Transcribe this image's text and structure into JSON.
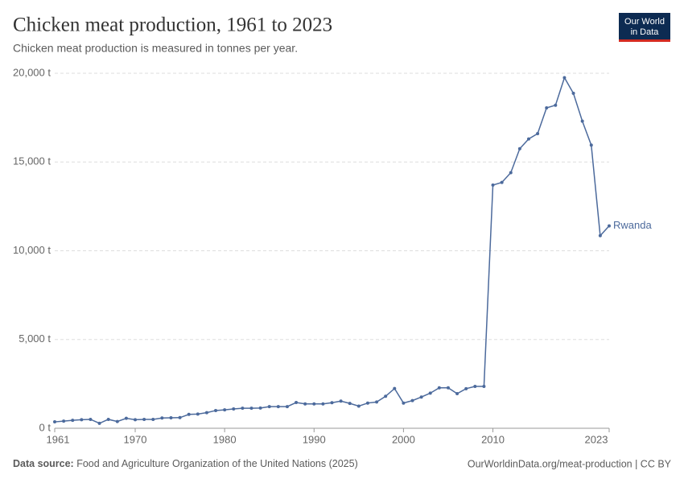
{
  "logo": [
    "Our World",
    "in Data"
  ],
  "source_label": "Data source:",
  "source": "Food and Agriculture Organization of the United Nations (2025)",
  "footer_right": "OurWorldinData.org/meat-production | CC BY",
  "chart_data": {
    "type": "line",
    "title": "Chicken meat production, 1961 to 2023",
    "subtitle": "Chicken meat production is measured in tonnes per year.",
    "x": [
      1961,
      1962,
      1963,
      1964,
      1965,
      1966,
      1967,
      1968,
      1969,
      1970,
      1971,
      1972,
      1973,
      1974,
      1975,
      1976,
      1977,
      1978,
      1979,
      1980,
      1981,
      1982,
      1983,
      1984,
      1985,
      1986,
      1987,
      1988,
      1989,
      1990,
      1991,
      1992,
      1993,
      1994,
      1995,
      1996,
      1997,
      1998,
      1999,
      2000,
      2001,
      2002,
      2003,
      2004,
      2005,
      2006,
      2007,
      2008,
      2009,
      2010,
      2011,
      2012,
      2013,
      2014,
      2015,
      2016,
      2017,
      2018,
      2019,
      2020,
      2021,
      2022,
      2023
    ],
    "series": [
      {
        "name": "Rwanda",
        "color": "#4c6a9c",
        "values": [
          360,
          400,
          450,
          480,
          500,
          280,
          500,
          380,
          560,
          480,
          500,
          500,
          580,
          590,
          600,
          780,
          800,
          880,
          1000,
          1040,
          1090,
          1130,
          1130,
          1140,
          1220,
          1220,
          1220,
          1450,
          1370,
          1370,
          1370,
          1440,
          1530,
          1400,
          1250,
          1420,
          1480,
          1800,
          2240,
          1420,
          1560,
          1760,
          1980,
          2280,
          2280,
          1950,
          2230,
          2360,
          2360,
          13700,
          13850,
          14400,
          15750,
          16300,
          16600,
          18050,
          18200,
          19750,
          18870,
          17300,
          15950,
          10850,
          11400
        ]
      }
    ],
    "xlim": [
      1961,
      2023
    ],
    "xticks": [
      1961,
      1970,
      1980,
      1990,
      2000,
      2010,
      2023
    ],
    "ylim": [
      0,
      20000
    ],
    "yticks": [
      {
        "value": 0,
        "label": "0 t"
      },
      {
        "value": 5000,
        "label": "5,000 t"
      },
      {
        "value": 10000,
        "label": "10,000 t"
      },
      {
        "value": 15000,
        "label": "15,000 t"
      },
      {
        "value": 20000,
        "label": "20,000 t"
      }
    ],
    "grid": true
  }
}
